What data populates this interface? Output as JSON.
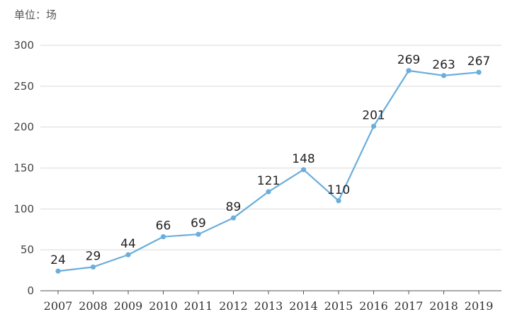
{
  "chart_data": {
    "type": "line",
    "unit_label": "单位：场",
    "x": [
      "2007",
      "2008",
      "2009",
      "2010",
      "2011",
      "2012",
      "2013",
      "2014",
      "2015",
      "2016",
      "2017",
      "2018",
      "2019"
    ],
    "series": [
      {
        "values": [
          24,
          29,
          44,
          66,
          69,
          89,
          121,
          148,
          110,
          201,
          269,
          263,
          267
        ]
      }
    ],
    "data_labels": [
      "24",
      "29",
      "44",
      "66",
      "69",
      "89",
      "121",
      "148",
      "110",
      "201",
      "269",
      "263",
      "267"
    ],
    "y_ticks": [
      "0",
      "50",
      "100",
      "150",
      "200",
      "250",
      "300"
    ],
    "ylim": [
      0,
      300
    ],
    "grid": true,
    "legend": "none",
    "colors": {
      "line": "#6aaedc",
      "grid": "#d9d9d9",
      "axis": "#555555"
    }
  }
}
